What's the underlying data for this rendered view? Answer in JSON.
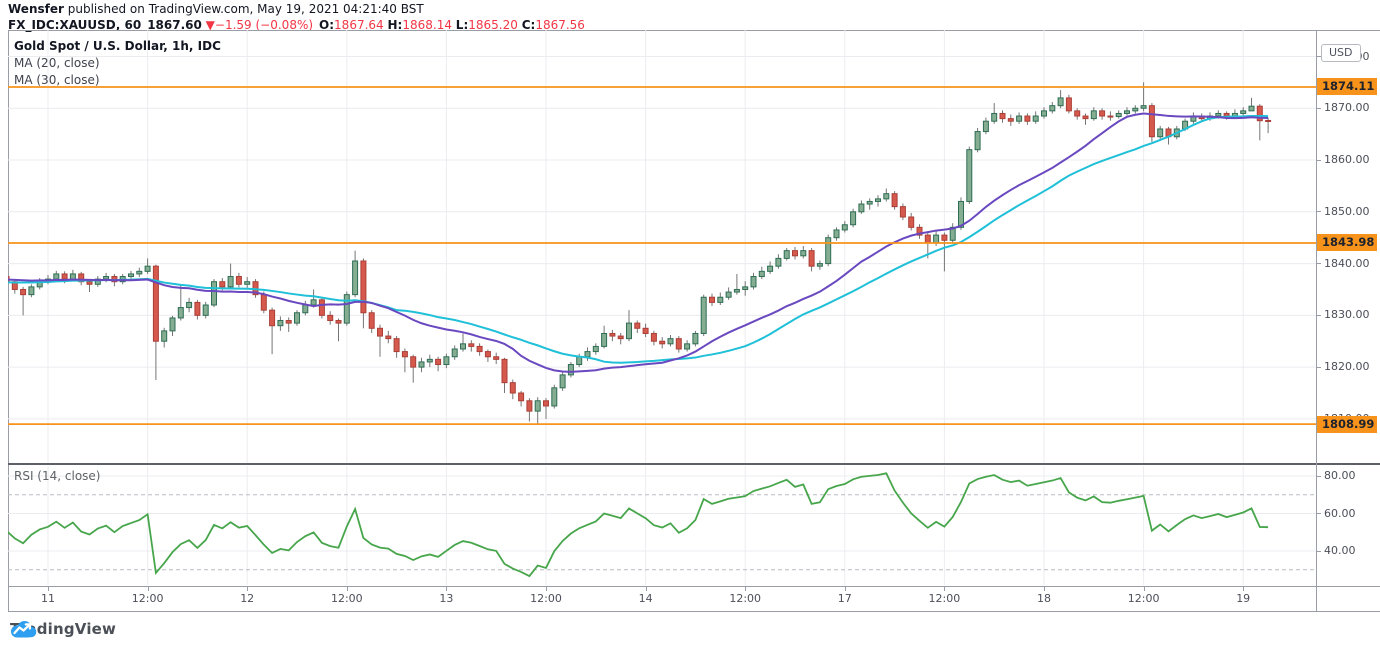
{
  "header": {
    "author": "Wensfer",
    "suffix": "published on TradingView.com, May 19, 2021 04:21:40 BST",
    "symbol_line": {
      "symbol": "FX_IDC:XAUUSD, 60",
      "price": "1867.60",
      "direction_icon": "▼",
      "change": "−1.59 (−0.08%)",
      "o_label": "O:",
      "o": "1867.64",
      "h_label": "H:",
      "h": "1868.14",
      "l_label": "L:",
      "l": "1865.20",
      "c_label": "C:",
      "c": "1867.56"
    }
  },
  "legend": {
    "title": "Gold Spot / U.S. Dollar, 1h, IDC",
    "ma20_label": "MA (20, close)",
    "ma30_label": "MA (30, close)"
  },
  "rsi_pane": {
    "label": "RSI (14, close)"
  },
  "price_scale": {
    "currency": "USD",
    "ticks": [
      {
        "label": "1880.00",
        "price": 1880
      },
      {
        "label": "1870.00",
        "price": 1870
      },
      {
        "label": "1860.00",
        "price": 1860
      },
      {
        "label": "1850.00",
        "price": 1850
      },
      {
        "label": "1840.00",
        "price": 1840
      },
      {
        "label": "1830.00",
        "price": 1830
      },
      {
        "label": "1820.00",
        "price": 1820
      },
      {
        "label": "1810.00",
        "price": 1810
      }
    ],
    "alerts": [
      {
        "label": "1874.11",
        "price": 1874.11
      },
      {
        "label": "1843.98",
        "price": 1843.98
      },
      {
        "label": "1808.99",
        "price": 1808.99
      }
    ],
    "rsi_ticks": [
      {
        "label": "80.00",
        "value": 80
      },
      {
        "label": "60.00",
        "value": 60
      },
      {
        "label": "40.00",
        "value": 40
      }
    ]
  },
  "time_axis": {
    "ticks": [
      {
        "label": "11",
        "index": 5
      },
      {
        "label": "12:00",
        "index": 17
      },
      {
        "label": "12",
        "index": 29
      },
      {
        "label": "12:00",
        "index": 41
      },
      {
        "label": "13",
        "index": 53
      },
      {
        "label": "12:00",
        "index": 65
      },
      {
        "label": "14",
        "index": 77
      },
      {
        "label": "12:00",
        "index": 89
      },
      {
        "label": "17",
        "index": 101
      },
      {
        "label": "12:00",
        "index": 113
      },
      {
        "label": "18",
        "index": 125
      },
      {
        "label": "12:00",
        "index": 137
      },
      {
        "label": "19",
        "index": 149
      }
    ]
  },
  "footer": {
    "brand": "TradingView"
  },
  "colors": {
    "up_fill": "#84ad92",
    "up_stroke": "#2f6d55",
    "down_fill": "#d6594e",
    "down_stroke": "#aa3f37",
    "wick": "#757575",
    "ma20": "#6a48c0",
    "ma30": "#1fc0d8",
    "alert": "#f7931a",
    "rsi": "#47a64b",
    "grid": "#ececf0",
    "band_dash": "#b8bbc2",
    "accent_red": "#f23645"
  },
  "chart_data": {
    "type": "candlestick",
    "title": "Gold Spot / U.S. Dollar, 1h, IDC",
    "x_axis": "time, 1-hour bars, May 11 - May 19 2021 (weekend 15-16 skipped)",
    "y_axis": "price (USD)",
    "ylim": [
      1806,
      1882
    ],
    "price_gridlines": [
      1880,
      1870,
      1860,
      1850,
      1840,
      1830,
      1820,
      1810
    ],
    "alert_levels": [
      1874.11,
      1843.98,
      1808.99
    ],
    "last_quote": {
      "open": 1867.64,
      "high": 1868.14,
      "low": 1865.2,
      "close": 1867.56,
      "change": -1.59,
      "change_pct": -0.08
    },
    "ma": [
      {
        "name": "MA (20, close)",
        "period": 20,
        "color_key": "ma20"
      },
      {
        "name": "MA (30, close)",
        "period": 30,
        "color_key": "ma30"
      }
    ],
    "rsi": {
      "name": "RSI (14, close)",
      "period": 14,
      "bands": [
        70,
        30
      ],
      "ticks": [
        80,
        60,
        40
      ]
    },
    "seed_closes": [
      1834,
      1835.5,
      1834,
      1835.5,
      1834.5,
      1836,
      1834.5,
      1836,
      1835,
      1836.5,
      1835,
      1836.5,
      1835.5,
      1837,
      1835.5,
      1837,
      1836,
      1837.5,
      1836,
      1837.5,
      1836.5,
      1838,
      1836.5,
      1838,
      1837,
      1838.5,
      1837,
      1838,
      1836.5,
      1837.5
    ],
    "candles": [
      [
        1837.5,
        1838,
        1835.8,
        1836.5
      ],
      [
        1836.5,
        1837,
        1834.2,
        1835
      ],
      [
        1835,
        1835.5,
        1830,
        1834
      ],
      [
        1834,
        1836,
        1833.5,
        1835.5
      ],
      [
        1835.5,
        1837.2,
        1835,
        1836.5
      ],
      [
        1836.5,
        1837.8,
        1836,
        1837
      ],
      [
        1837,
        1838.6,
        1836.5,
        1838
      ],
      [
        1838,
        1838.5,
        1836.2,
        1837
      ],
      [
        1837,
        1838.8,
        1836.6,
        1838
      ],
      [
        1838,
        1838.4,
        1835.8,
        1836.5
      ],
      [
        1836.5,
        1837,
        1834.5,
        1836
      ],
      [
        1836,
        1837.6,
        1835.5,
        1837
      ],
      [
        1837,
        1838.2,
        1836.4,
        1837.5
      ],
      [
        1837.5,
        1838,
        1835.6,
        1836.5
      ],
      [
        1836.5,
        1838,
        1836,
        1837.5
      ],
      [
        1837.5,
        1838.6,
        1837,
        1838
      ],
      [
        1838,
        1839.2,
        1837.4,
        1838.5
      ],
      [
        1838.5,
        1841,
        1838,
        1839.5
      ],
      [
        1839.5,
        1839.8,
        1817.5,
        1825
      ],
      [
        1825,
        1827.6,
        1823.8,
        1827
      ],
      [
        1827,
        1829.9,
        1826,
        1829.5
      ],
      [
        1829.5,
        1836,
        1829,
        1831.5
      ],
      [
        1831.5,
        1833.4,
        1830.6,
        1832.5
      ],
      [
        1832.5,
        1833,
        1829.2,
        1830
      ],
      [
        1830,
        1832.6,
        1829.4,
        1832
      ],
      [
        1832,
        1837,
        1831.6,
        1836.5
      ],
      [
        1836.5,
        1837.2,
        1834.8,
        1835.5
      ],
      [
        1835.5,
        1840,
        1835,
        1837.5
      ],
      [
        1837.5,
        1838.2,
        1835.4,
        1836
      ],
      [
        1836,
        1837.4,
        1835.2,
        1836.5
      ],
      [
        1836.5,
        1837,
        1833.4,
        1834
      ],
      [
        1834,
        1834.6,
        1830.4,
        1831
      ],
      [
        1831,
        1831.5,
        1822.5,
        1828
      ],
      [
        1828,
        1829.8,
        1827,
        1829
      ],
      [
        1829,
        1829.6,
        1826.8,
        1828.5
      ],
      [
        1828.5,
        1831,
        1828,
        1830.5
      ],
      [
        1830.5,
        1832.8,
        1830,
        1832
      ],
      [
        1832,
        1835,
        1831.5,
        1833
      ],
      [
        1833,
        1833.4,
        1829.4,
        1830
      ],
      [
        1830,
        1830.8,
        1828.2,
        1829
      ],
      [
        1829,
        1829.4,
        1825,
        1828.5
      ],
      [
        1828.5,
        1834.6,
        1828,
        1834
      ],
      [
        1834,
        1842.5,
        1833.5,
        1840.5
      ],
      [
        1840.5,
        1841,
        1827.5,
        1830.5
      ],
      [
        1830.5,
        1831,
        1826.6,
        1827.5
      ],
      [
        1827.5,
        1828.2,
        1822,
        1826
      ],
      [
        1826,
        1827,
        1824.6,
        1825.5
      ],
      [
        1825.5,
        1826,
        1821.8,
        1823
      ],
      [
        1823,
        1823.6,
        1819,
        1822
      ],
      [
        1822,
        1822.4,
        1817,
        1820
      ],
      [
        1820,
        1821.8,
        1819,
        1821
      ],
      [
        1821,
        1822.4,
        1820,
        1821.5
      ],
      [
        1821.5,
        1822,
        1819.2,
        1820.5
      ],
      [
        1820.5,
        1822.6,
        1819.8,
        1822
      ],
      [
        1822,
        1824.2,
        1821.4,
        1823.5
      ],
      [
        1823.5,
        1826.5,
        1823,
        1824.5
      ],
      [
        1824.5,
        1825.2,
        1823,
        1824
      ],
      [
        1824,
        1824.6,
        1822.2,
        1823
      ],
      [
        1823,
        1823.4,
        1821,
        1822
      ],
      [
        1822,
        1822.8,
        1820.6,
        1821.5
      ],
      [
        1821.5,
        1821.8,
        1815,
        1817
      ],
      [
        1817,
        1817.6,
        1813.8,
        1815
      ],
      [
        1815,
        1815.4,
        1812.4,
        1813.5
      ],
      [
        1813.5,
        1814,
        1809.5,
        1811.5
      ],
      [
        1811.5,
        1814.2,
        1809,
        1813.5
      ],
      [
        1813.5,
        1814,
        1810,
        1812.5
      ],
      [
        1812.5,
        1816.6,
        1812,
        1816
      ],
      [
        1816,
        1819,
        1815.4,
        1818.5
      ],
      [
        1818.5,
        1821,
        1818,
        1820.5
      ],
      [
        1820.5,
        1822.6,
        1820,
        1822
      ],
      [
        1822,
        1823.8,
        1821.2,
        1823
      ],
      [
        1823,
        1824.6,
        1822.4,
        1824
      ],
      [
        1824,
        1828,
        1823.6,
        1826.5
      ],
      [
        1826.5,
        1827.2,
        1825,
        1826
      ],
      [
        1826,
        1826.6,
        1824.4,
        1825.5
      ],
      [
        1825.5,
        1831,
        1825,
        1828.5
      ],
      [
        1828.5,
        1829,
        1826.6,
        1827.5
      ],
      [
        1827.5,
        1828.4,
        1825.8,
        1826.5
      ],
      [
        1826.5,
        1827,
        1824.2,
        1825
      ],
      [
        1825,
        1825.8,
        1823.6,
        1824.5
      ],
      [
        1824.5,
        1826.2,
        1824,
        1825.5
      ],
      [
        1825.5,
        1826,
        1822.8,
        1823.5
      ],
      [
        1823.5,
        1825.2,
        1823,
        1824.5
      ],
      [
        1824.5,
        1827,
        1824,
        1826.5
      ],
      [
        1826.5,
        1834,
        1826,
        1833.5
      ],
      [
        1833.5,
        1834.2,
        1831.8,
        1832.5
      ],
      [
        1832.5,
        1834.4,
        1832,
        1833.5
      ],
      [
        1833.5,
        1835.4,
        1833,
        1834.5
      ],
      [
        1834.5,
        1838,
        1834,
        1835
      ],
      [
        1835,
        1836.6,
        1833.8,
        1835.5
      ],
      [
        1835.5,
        1838.2,
        1835,
        1837.5
      ],
      [
        1837.5,
        1839.4,
        1837,
        1838.5
      ],
      [
        1838.5,
        1840.4,
        1838,
        1839.5
      ],
      [
        1839.5,
        1841.8,
        1839,
        1841
      ],
      [
        1841,
        1843,
        1840.6,
        1842.5
      ],
      [
        1842.5,
        1843.2,
        1840.8,
        1841.5
      ],
      [
        1841.5,
        1843.4,
        1841,
        1842.5
      ],
      [
        1842.5,
        1843,
        1838.5,
        1839.5
      ],
      [
        1839.5,
        1840.6,
        1838.8,
        1840
      ],
      [
        1840,
        1845.6,
        1839.5,
        1845
      ],
      [
        1845,
        1847,
        1844.4,
        1846.5
      ],
      [
        1846.5,
        1848.2,
        1846,
        1847.5
      ],
      [
        1847.5,
        1850.6,
        1847,
        1850
      ],
      [
        1850,
        1852.2,
        1849.6,
        1851.5
      ],
      [
        1851.5,
        1852.6,
        1850.4,
        1852
      ],
      [
        1852,
        1853.2,
        1851,
        1852.5
      ],
      [
        1852.5,
        1854.5,
        1852,
        1853.5
      ],
      [
        1853.5,
        1854,
        1850.4,
        1851
      ],
      [
        1851,
        1851.6,
        1848.4,
        1849
      ],
      [
        1849,
        1849.8,
        1846.4,
        1847
      ],
      [
        1847,
        1847.6,
        1844.8,
        1845.5
      ],
      [
        1845.5,
        1846,
        1841,
        1844
      ],
      [
        1844,
        1846.2,
        1843.4,
        1845.5
      ],
      [
        1845.5,
        1846,
        1838.5,
        1844.5
      ],
      [
        1844.5,
        1847.8,
        1844,
        1847
      ],
      [
        1847,
        1852.8,
        1846.5,
        1852
      ],
      [
        1852,
        1862.6,
        1851.5,
        1862
      ],
      [
        1862,
        1866.2,
        1861.5,
        1865.5
      ],
      [
        1865.5,
        1868.2,
        1865,
        1867.5
      ],
      [
        1867.5,
        1871,
        1867,
        1869
      ],
      [
        1869,
        1869.6,
        1867.2,
        1868
      ],
      [
        1868,
        1868.8,
        1866.6,
        1867.5
      ],
      [
        1867.5,
        1869.2,
        1867,
        1868.5
      ],
      [
        1868.5,
        1869,
        1866.8,
        1867.5
      ],
      [
        1867.5,
        1869.4,
        1867,
        1868.5
      ],
      [
        1868.5,
        1870.2,
        1868,
        1869.5
      ],
      [
        1869.5,
        1871.2,
        1869,
        1870.5
      ],
      [
        1870.5,
        1873.5,
        1870,
        1872
      ],
      [
        1872,
        1872.6,
        1869,
        1869.5
      ],
      [
        1869.5,
        1870,
        1867.8,
        1868.5
      ],
      [
        1868.5,
        1869,
        1866.8,
        1868
      ],
      [
        1868,
        1870.2,
        1867.6,
        1869.5
      ],
      [
        1869.5,
        1870,
        1867.8,
        1868.5
      ],
      [
        1868.5,
        1869.4,
        1867.6,
        1868.4
      ],
      [
        1868.4,
        1869.6,
        1868,
        1869
      ],
      [
        1869,
        1870.2,
        1868.6,
        1869.5
      ],
      [
        1869.5,
        1870.6,
        1869,
        1870
      ],
      [
        1870,
        1875,
        1869.4,
        1870.5
      ],
      [
        1870.5,
        1871,
        1863.5,
        1864.5
      ],
      [
        1864.5,
        1866.6,
        1864,
        1866
      ],
      [
        1866,
        1866.4,
        1863,
        1864.5
      ],
      [
        1864.5,
        1866.6,
        1864,
        1866
      ],
      [
        1866,
        1868,
        1865.6,
        1867.5
      ],
      [
        1867.5,
        1869.2,
        1867,
        1868.5
      ],
      [
        1868.5,
        1869,
        1867.4,
        1868
      ],
      [
        1868,
        1869.2,
        1867.6,
        1868.5
      ],
      [
        1868.5,
        1869.6,
        1868,
        1869
      ],
      [
        1869,
        1869.4,
        1867.8,
        1868.5
      ],
      [
        1868.5,
        1869.8,
        1868.2,
        1869
      ],
      [
        1869,
        1870.2,
        1868.6,
        1869.5
      ],
      [
        1869.5,
        1872,
        1870,
        1870.4
      ],
      [
        1870.4,
        1870.8,
        1863.8,
        1867.6
      ],
      [
        1867.64,
        1868.14,
        1865.2,
        1867.56
      ]
    ]
  }
}
